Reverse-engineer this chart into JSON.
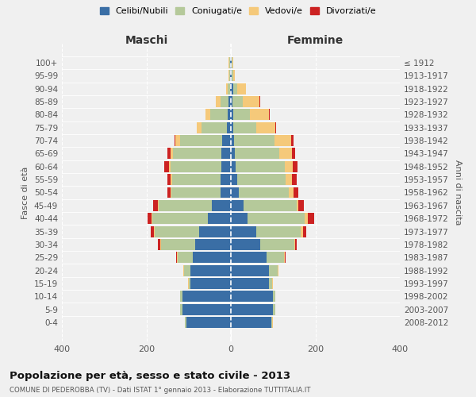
{
  "age_groups": [
    "0-4",
    "5-9",
    "10-14",
    "15-19",
    "20-24",
    "25-29",
    "30-34",
    "35-39",
    "40-44",
    "45-49",
    "50-54",
    "55-59",
    "60-64",
    "65-69",
    "70-74",
    "75-79",
    "80-84",
    "85-89",
    "90-94",
    "95-99",
    "100+"
  ],
  "birth_years": [
    "2008-2012",
    "2003-2007",
    "1998-2002",
    "1993-1997",
    "1988-1992",
    "1983-1987",
    "1978-1982",
    "1973-1977",
    "1968-1972",
    "1963-1967",
    "1958-1962",
    "1953-1957",
    "1948-1952",
    "1943-1947",
    "1938-1942",
    "1933-1937",
    "1928-1932",
    "1923-1927",
    "1918-1922",
    "1913-1917",
    "≤ 1912"
  ],
  "maschi": {
    "celibi": [
      105,
      115,
      115,
      95,
      95,
      90,
      85,
      75,
      55,
      45,
      25,
      24,
      22,
      22,
      20,
      10,
      8,
      5,
      2,
      2,
      2
    ],
    "coniugati": [
      3,
      5,
      5,
      5,
      15,
      35,
      80,
      105,
      130,
      125,
      115,
      115,
      120,
      115,
      100,
      60,
      40,
      20,
      5,
      2,
      2
    ],
    "vedovi": [
      1,
      1,
      1,
      1,
      2,
      2,
      2,
      2,
      2,
      2,
      3,
      3,
      5,
      5,
      12,
      10,
      12,
      10,
      5,
      2,
      1
    ],
    "divorziati": [
      0,
      0,
      0,
      0,
      1,
      3,
      5,
      8,
      10,
      12,
      8,
      8,
      10,
      8,
      2,
      0,
      0,
      0,
      0,
      0,
      0
    ]
  },
  "femmine": {
    "nubili": [
      95,
      100,
      100,
      90,
      90,
      85,
      70,
      60,
      40,
      30,
      18,
      15,
      12,
      10,
      8,
      5,
      5,
      3,
      5,
      2,
      2
    ],
    "coniugate": [
      3,
      5,
      5,
      8,
      20,
      40,
      80,
      105,
      135,
      125,
      120,
      115,
      115,
      105,
      95,
      55,
      40,
      25,
      10,
      3,
      2
    ],
    "vedove": [
      1,
      1,
      1,
      1,
      2,
      3,
      3,
      5,
      8,
      5,
      10,
      15,
      20,
      30,
      40,
      45,
      45,
      40,
      20,
      5,
      2
    ],
    "divorziate": [
      0,
      0,
      0,
      0,
      1,
      2,
      3,
      8,
      15,
      12,
      12,
      10,
      10,
      8,
      5,
      2,
      2,
      2,
      0,
      0,
      0
    ]
  },
  "colors": {
    "celibi": "#3a6ea5",
    "coniugati": "#b5c99a",
    "vedovi": "#f5c97a",
    "divorziati": "#cc2222"
  },
  "legend_labels": [
    "Celibi/Nubili",
    "Coniugati/e",
    "Vedovi/e",
    "Divorziati/e"
  ],
  "legend_colors": [
    "#3a6ea5",
    "#b5c99a",
    "#f5c97a",
    "#cc2222"
  ],
  "title": "Popolazione per età, sesso e stato civile - 2013",
  "subtitle": "COMUNE DI PEDEROBBA (TV) - Dati ISTAT 1° gennaio 2013 - Elaborazione TUTTITALIA.IT",
  "xlabel_left": "Maschi",
  "xlabel_right": "Femmine",
  "ylabel_left": "Fasce di età",
  "ylabel_right": "Anni di nascita",
  "xlim": 400,
  "background_color": "#f0f0f0",
  "bar_height": 0.85
}
